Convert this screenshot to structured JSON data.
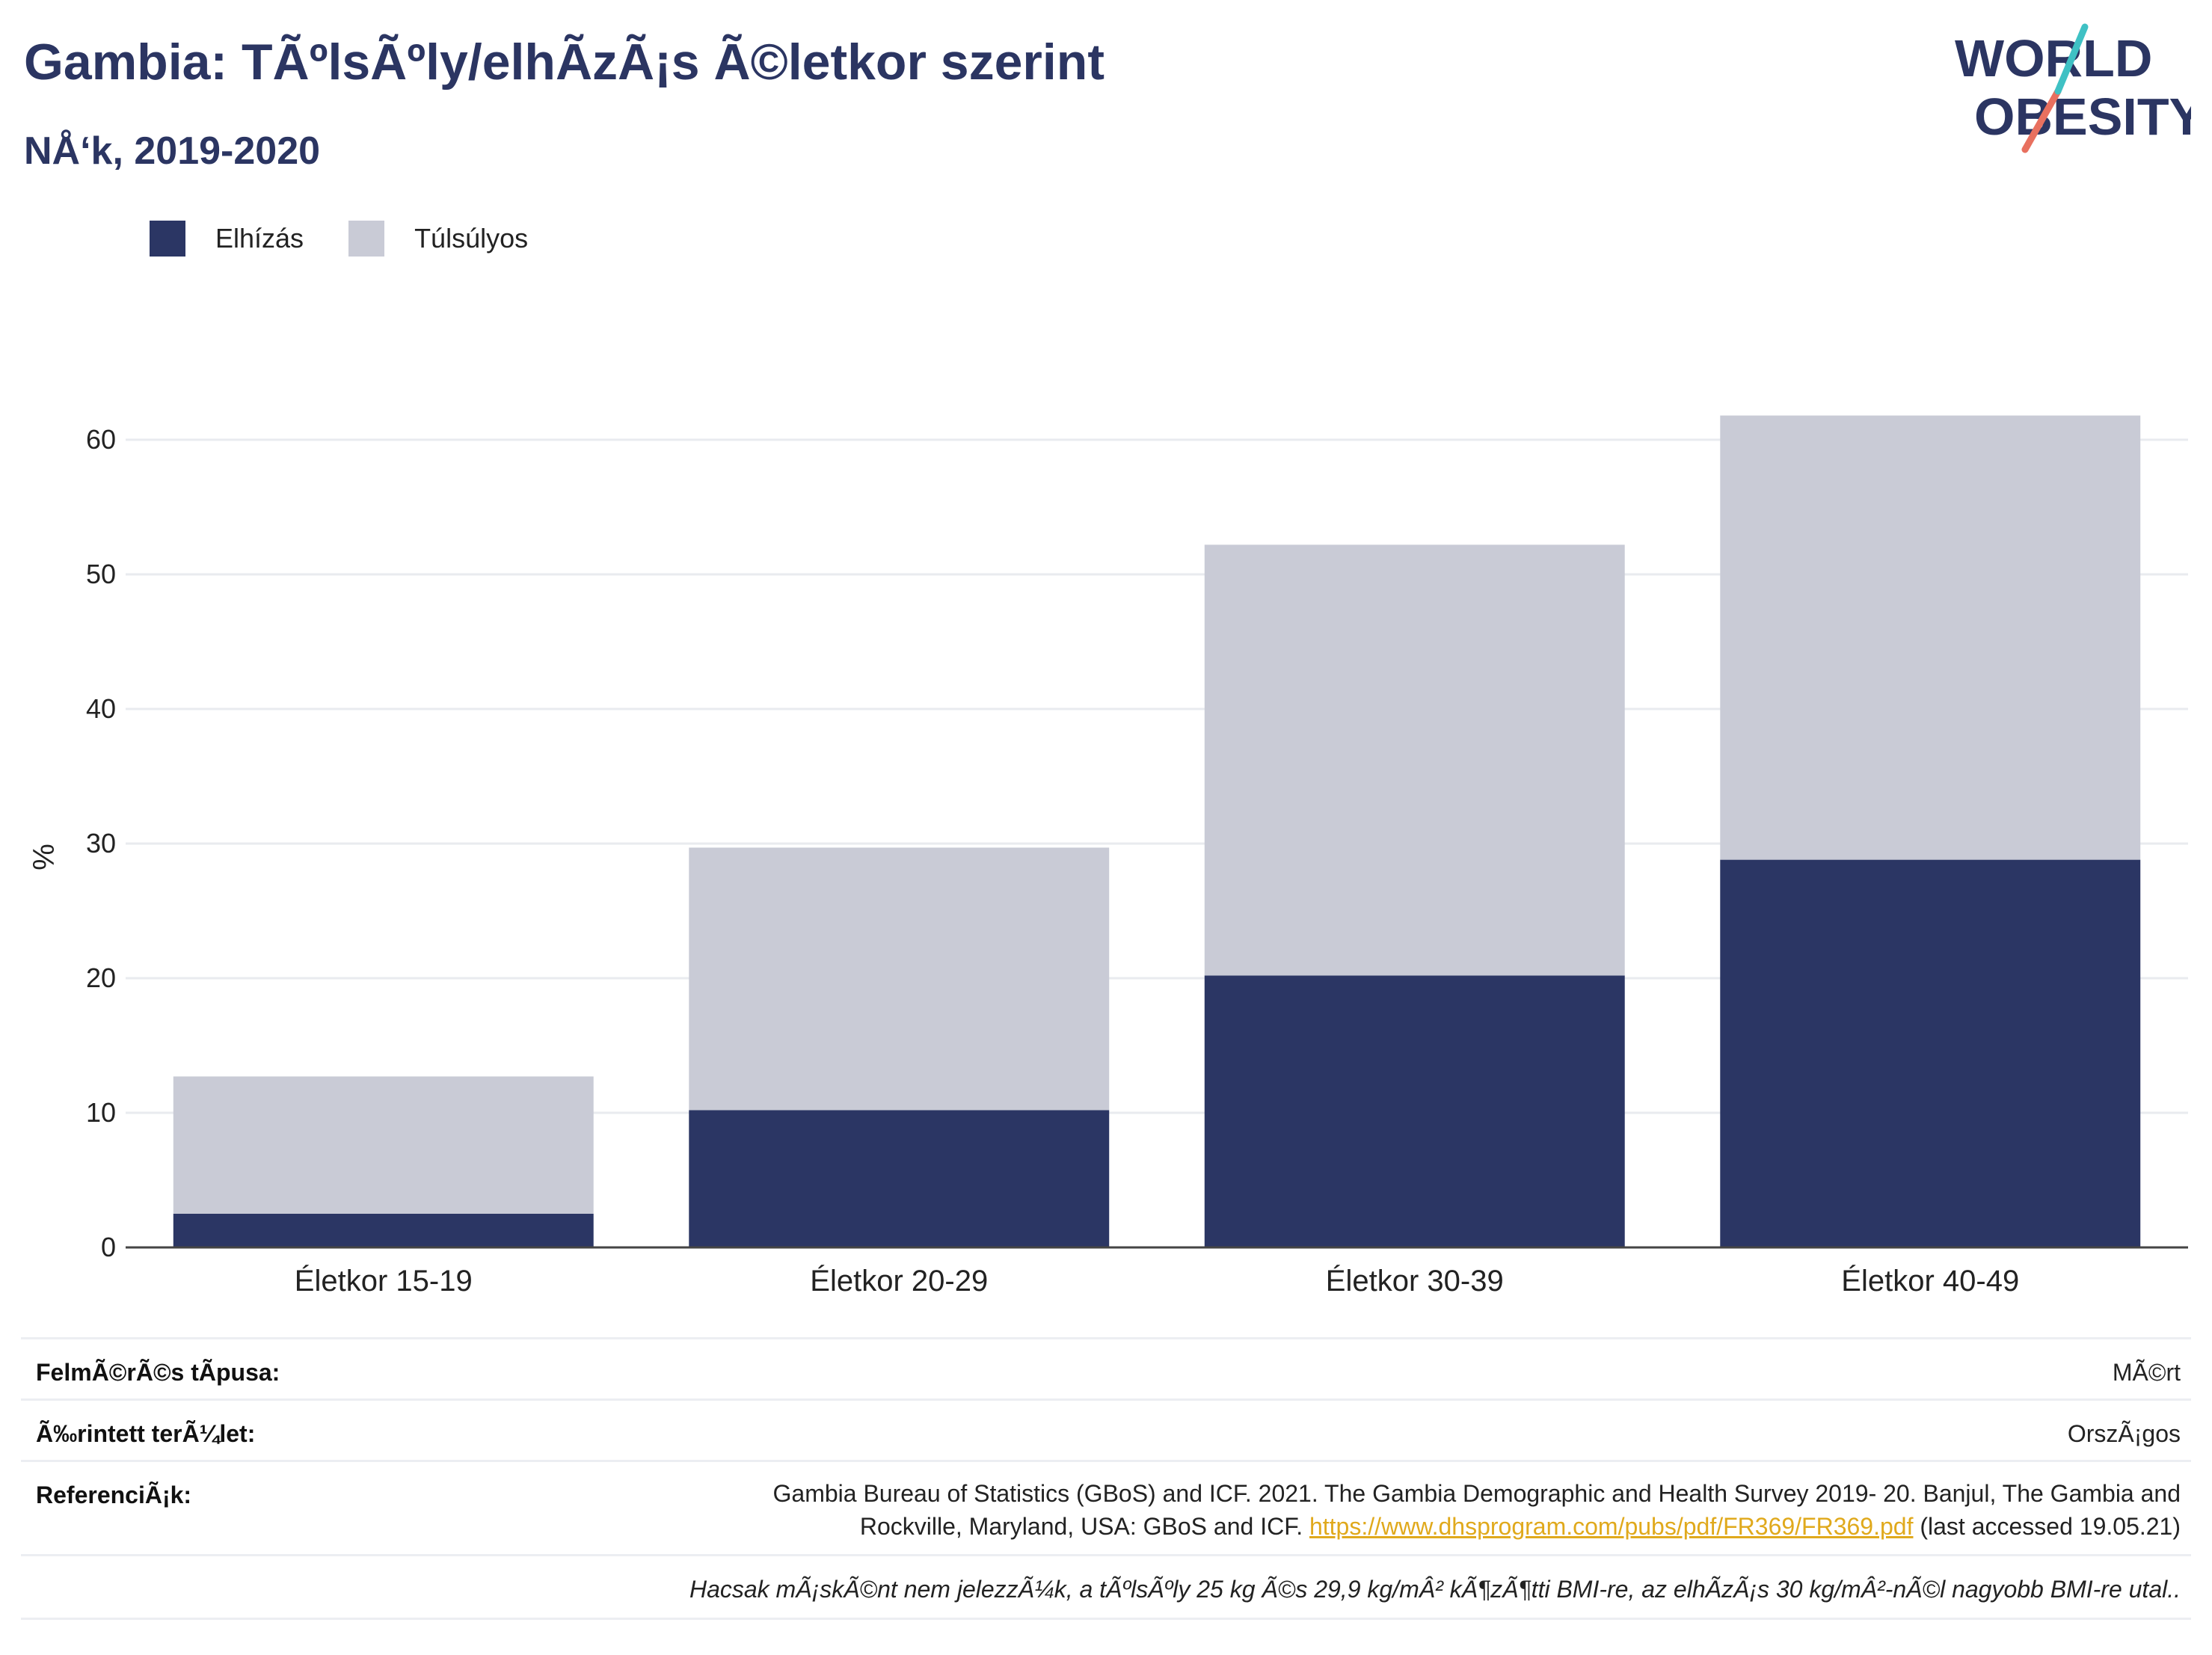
{
  "title": "Gambia: TÃºlsÃºly/elhÃ­zÃ¡s Ã©letkor szerint",
  "subtitle": "NÅ‘k, 2019-2020",
  "logo": {
    "line1": "WORLD",
    "line2": "OBESITY"
  },
  "colors": {
    "obese": "#2b3664",
    "overweight": "#c9cbd6",
    "title": "#2b3562",
    "link": "#e0a91c"
  },
  "legend": {
    "obese": "Elhízás",
    "overweight": "Túlsúlyos"
  },
  "chart_data": {
    "type": "bar",
    "stacked": true,
    "categories": [
      "Életkor 15-19",
      "Életkor 20-29",
      "Életkor 30-39",
      "Életkor 40-49"
    ],
    "series": [
      {
        "name": "Elhízás",
        "values": [
          2.5,
          10.2,
          20.2,
          28.8
        ]
      },
      {
        "name": "Túlsúlyos",
        "values": [
          10.2,
          19.5,
          32.0,
          33.0
        ]
      }
    ],
    "ylabel": "%",
    "yticks": [
      0,
      10,
      20,
      30,
      40,
      50,
      60
    ],
    "ylim": [
      0,
      64
    ],
    "grid": true,
    "legend_position": "top-left"
  },
  "footer": {
    "survey_type_label": "FelmÃ©rÃ©s tÃ­pusa:",
    "survey_type_value": "MÃ©rt",
    "area_label": "Ã‰rintett terÃ¼let:",
    "area_value": "OrszÃ¡gos",
    "reference_label": "ReferenciÃ¡k:",
    "reference_text_1": "Gambia Bureau of Statistics (GBoS) and ICF. 2021. The Gambia Demographic and Health Survey 2019- 20. Banjul, The Gambia and",
    "reference_text_2": "Rockville, Maryland, USA: GBoS and ICF.",
    "reference_link": "https://www.dhsprogram.com/pubs/pdf/FR369/FR369.pdf",
    "reference_accessed": "(last accessed 19.05.21)",
    "note": "Hacsak mÃ¡skÃ©nt nem jelezzÃ¼k, a tÃºlsÃºly 25 kg Ã©s 29,9 kg/mÂ² kÃ¶zÃ¶tti BMI-re, az elhÃ­zÃ¡s 30 kg/mÂ²-nÃ©l nagyobb BMI-re utal.."
  }
}
